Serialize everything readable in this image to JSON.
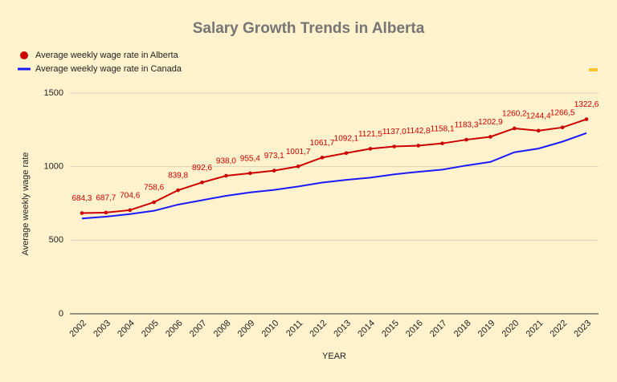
{
  "chart_data": {
    "type": "line",
    "title": "Salary Growth Trends in Alberta",
    "x_label": "YEAR",
    "y_label": "Average weekly wage rate",
    "categories": [
      "2002",
      "2003",
      "2004",
      "2005",
      "2006",
      "2007",
      "2008",
      "2009",
      "2010",
      "2011",
      "2012",
      "2013",
      "2014",
      "2015",
      "2016",
      "2017",
      "2018",
      "2019",
      "2020",
      "2021",
      "2022",
      "2023"
    ],
    "series": [
      {
        "name": "Average weekly wage rate in Alberta",
        "color": "#cc0000",
        "marker": true,
        "values": [
          684.3,
          687.7,
          704.6,
          758.6,
          839.8,
          892.6,
          938.0,
          955.4,
          973.1,
          1001.7,
          1061.7,
          1092.1,
          1121.5,
          1137.0,
          1142.8,
          1158.1,
          1183.3,
          1202.9,
          1260.2,
          1244.4,
          1266.5,
          1322.6
        ],
        "value_labels": [
          "684,3",
          "687,7",
          "704,6",
          "758,6",
          "839,8",
          "892,6",
          "938,0",
          "955,4",
          "973,1",
          "1001,7",
          "1061,7",
          "1092,1",
          "1121,5",
          "1137,0",
          "1142,8",
          "1158,1",
          "1183,3",
          "1202,9",
          "1260,2",
          "1244,4",
          "1266,5",
          "1322,6"
        ]
      },
      {
        "name": "Average weekly wage rate in Canada",
        "color": "#1a1aff",
        "marker": false,
        "values": [
          648,
          660,
          678,
          700,
          742,
          772,
          802,
          825,
          842,
          865,
          892,
          910,
          925,
          948,
          965,
          980,
          1008,
          1032,
          1098,
          1123,
          1170,
          1228
        ]
      }
    ],
    "ylim": [
      0,
      1500
    ],
    "yticks": [
      0,
      500,
      1000,
      1500
    ],
    "grid": true
  }
}
